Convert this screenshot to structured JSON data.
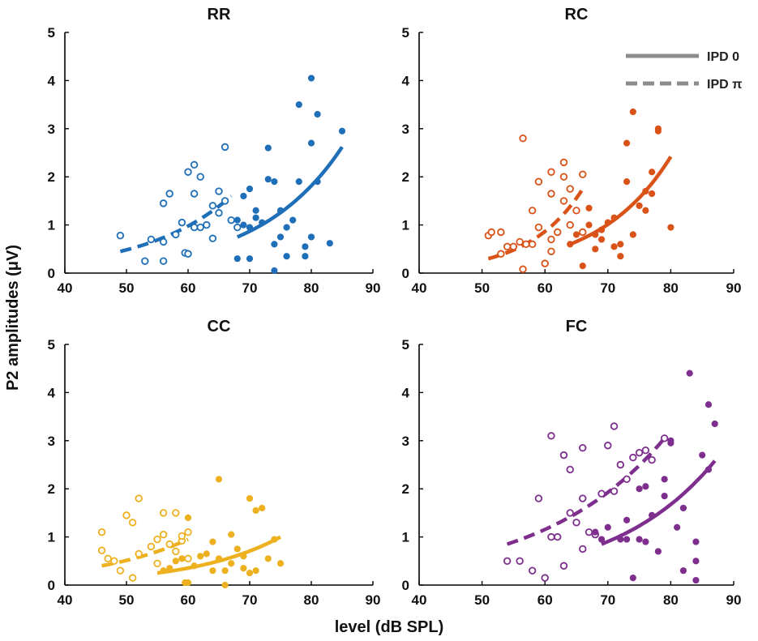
{
  "chart_data": {
    "type": "scatter",
    "ylabel": "P2 amplitudes  (μV)",
    "xlabel": "level (dB SPL)",
    "xlim": [
      40,
      90
    ],
    "ylim": [
      0,
      5
    ],
    "xticks": [
      "40",
      "50",
      "60",
      "70",
      "80",
      "90"
    ],
    "yticks": [
      "0",
      "1",
      "2",
      "3",
      "4",
      "5"
    ],
    "legend": {
      "placement": "top-right of RC panel",
      "entries": [
        {
          "label": "IPD 0",
          "style": "solid",
          "color": "#8c8c8c"
        },
        {
          "label": "IPD π",
          "style": "dashed",
          "color": "#8c8c8c"
        }
      ]
    },
    "panels": [
      {
        "title": "RR",
        "color": "#1f6fb8",
        "ipd_pi_points": [
          [
            49,
            0.78
          ],
          [
            53,
            0.25
          ],
          [
            54,
            0.7
          ],
          [
            56,
            0.25
          ],
          [
            56,
            0.65
          ],
          [
            56,
            1.45
          ],
          [
            57,
            1.65
          ],
          [
            58,
            0.8
          ],
          [
            59,
            1.05
          ],
          [
            59.5,
            0.42
          ],
          [
            60,
            0.4
          ],
          [
            60,
            2.1
          ],
          [
            61,
            2.25
          ],
          [
            61,
            1.65
          ],
          [
            61,
            0.95
          ],
          [
            62,
            0.95
          ],
          [
            62,
            2.0
          ],
          [
            63,
            1.0
          ],
          [
            64,
            1.4
          ],
          [
            64,
            0.72
          ],
          [
            65,
            1.7
          ],
          [
            65,
            1.25
          ],
          [
            66,
            1.5
          ],
          [
            66,
            2.62
          ],
          [
            67,
            1.1
          ],
          [
            68,
            0.95
          ]
        ],
        "ipd_0_points": [
          [
            68,
            1.1
          ],
          [
            68,
            0.3
          ],
          [
            69,
            1.6
          ],
          [
            69,
            1.0
          ],
          [
            70,
            1.75
          ],
          [
            70,
            0.3
          ],
          [
            70,
            0.95
          ],
          [
            71,
            1.3
          ],
          [
            71,
            1.15
          ],
          [
            72,
            1.05
          ],
          [
            73,
            2.6
          ],
          [
            73,
            1.95
          ],
          [
            74,
            0.6
          ],
          [
            74,
            1.9
          ],
          [
            74,
            0.05
          ],
          [
            75,
            0.75
          ],
          [
            75,
            1.3
          ],
          [
            76,
            0.35
          ],
          [
            76,
            0.95
          ],
          [
            77,
            1.1
          ],
          [
            78,
            1.9
          ],
          [
            78,
            3.5
          ],
          [
            79,
            0.55
          ],
          [
            79,
            0.35
          ],
          [
            80,
            4.05
          ],
          [
            80,
            0.75
          ],
          [
            80,
            2.7
          ],
          [
            81,
            3.3
          ],
          [
            81,
            1.9
          ],
          [
            83,
            0.62
          ],
          [
            85,
            2.95
          ]
        ],
        "ipd_pi_fit": {
          "x": [
            49,
            67
          ],
          "y": [
            0.45,
            1.6
          ]
        },
        "ipd_0_fit": {
          "x": [
            68,
            85
          ],
          "y": [
            0.75,
            2.62
          ]
        }
      },
      {
        "title": "RC",
        "color": "#d95319",
        "ipd_pi_points": [
          [
            51,
            0.78
          ],
          [
            51.5,
            0.85
          ],
          [
            53,
            0.4
          ],
          [
            53,
            0.85
          ],
          [
            54,
            0.55
          ],
          [
            55,
            0.55
          ],
          [
            56,
            0.65
          ],
          [
            56.5,
            2.8
          ],
          [
            56.5,
            0.08
          ],
          [
            57,
            0.6
          ],
          [
            58,
            0.6
          ],
          [
            58,
            1.3
          ],
          [
            59,
            0.95
          ],
          [
            59,
            1.9
          ],
          [
            60,
            0.2
          ],
          [
            61,
            0.45
          ],
          [
            61,
            1.65
          ],
          [
            61,
            2.1
          ],
          [
            61,
            0.7
          ],
          [
            62,
            0.85
          ],
          [
            63,
            1.5
          ],
          [
            63,
            2.0
          ],
          [
            63,
            2.3
          ],
          [
            64,
            1.75
          ],
          [
            64,
            1.0
          ],
          [
            65,
            1.3
          ],
          [
            66,
            2.05
          ],
          [
            66,
            0.85
          ]
        ],
        "ipd_0_points": [
          [
            64,
            0.6
          ],
          [
            65,
            0.8
          ],
          [
            66,
            0.15
          ],
          [
            67,
            1.0
          ],
          [
            67,
            1.35
          ],
          [
            68,
            0.8
          ],
          [
            68,
            0.5
          ],
          [
            69,
            0.9
          ],
          [
            69,
            0.7
          ],
          [
            70,
            1.05
          ],
          [
            71,
            0.55
          ],
          [
            71,
            1.15
          ],
          [
            72,
            0.35
          ],
          [
            72,
            0.6
          ],
          [
            73,
            2.7
          ],
          [
            73,
            1.9
          ],
          [
            74,
            0.8
          ],
          [
            74,
            3.35
          ],
          [
            75,
            1.4
          ],
          [
            76,
            1.3
          ],
          [
            76,
            1.7
          ],
          [
            77,
            2.1
          ],
          [
            77,
            1.65
          ],
          [
            78,
            3.0
          ],
          [
            78,
            2.95
          ],
          [
            80,
            0.95
          ]
        ],
        "ipd_pi_fit": {
          "x": [
            51,
            66
          ],
          "y": [
            0.3,
            1.75
          ]
        },
        "ipd_0_fit": {
          "x": [
            64,
            80
          ],
          "y": [
            0.6,
            2.42
          ]
        }
      },
      {
        "title": "CC",
        "color": "#edb120",
        "ipd_pi_points": [
          [
            46,
            1.1
          ],
          [
            46,
            0.72
          ],
          [
            47,
            0.55
          ],
          [
            48,
            0.5
          ],
          [
            49,
            0.3
          ],
          [
            50,
            1.45
          ],
          [
            51,
            1.3
          ],
          [
            51,
            0.15
          ],
          [
            52,
            0.65
          ],
          [
            52,
            1.8
          ],
          [
            54,
            0.8
          ],
          [
            55,
            0.95
          ],
          [
            55,
            0.45
          ],
          [
            56,
            1.05
          ],
          [
            56,
            1.5
          ],
          [
            57,
            0.85
          ],
          [
            58,
            1.5
          ],
          [
            58,
            0.7
          ],
          [
            59,
            0.92
          ],
          [
            59,
            1.02
          ],
          [
            60,
            1.1
          ],
          [
            60,
            0.55
          ]
        ],
        "ipd_0_points": [
          [
            56,
            0.3
          ],
          [
            57,
            0.35
          ],
          [
            58,
            0.5
          ],
          [
            59,
            0.55
          ],
          [
            59.5,
            0.05
          ],
          [
            60,
            1.4
          ],
          [
            60,
            0.05
          ],
          [
            61,
            0.4
          ],
          [
            62,
            0.6
          ],
          [
            63,
            0.65
          ],
          [
            64,
            0.9
          ],
          [
            64,
            0.3
          ],
          [
            65,
            2.2
          ],
          [
            65,
            0.55
          ],
          [
            66,
            0.0
          ],
          [
            66,
            0.3
          ],
          [
            67,
            0.45
          ],
          [
            67,
            1.05
          ],
          [
            68,
            0.75
          ],
          [
            69,
            0.6
          ],
          [
            69,
            0.35
          ],
          [
            70,
            0.25
          ],
          [
            70,
            1.8
          ],
          [
            71,
            0.3
          ],
          [
            71,
            1.55
          ],
          [
            72,
            1.6
          ],
          [
            73,
            0.55
          ],
          [
            74,
            0.95
          ],
          [
            75,
            0.45
          ]
        ],
        "ipd_pi_fit": {
          "x": [
            46,
            60
          ],
          "y": [
            0.4,
            0.95
          ]
        },
        "ipd_0_fit": {
          "x": [
            55,
            75
          ],
          "y": [
            0.25,
            1.0
          ]
        }
      },
      {
        "title": "FC",
        "color": "#7e2f8e",
        "ipd_pi_points": [
          [
            54,
            0.5
          ],
          [
            56,
            0.5
          ],
          [
            58,
            0.3
          ],
          [
            59,
            1.8
          ],
          [
            60,
            0.15
          ],
          [
            61,
            3.1
          ],
          [
            61,
            1.0
          ],
          [
            62,
            1.0
          ],
          [
            63,
            2.7
          ],
          [
            63,
            0.4
          ],
          [
            64,
            2.4
          ],
          [
            64,
            1.5
          ],
          [
            65,
            1.3
          ],
          [
            66,
            1.8
          ],
          [
            66,
            0.75
          ],
          [
            66,
            2.85
          ],
          [
            67,
            1.1
          ],
          [
            68,
            1.05
          ],
          [
            69,
            1.9
          ],
          [
            70,
            2.9
          ],
          [
            71,
            3.3
          ],
          [
            71,
            1.95
          ],
          [
            72,
            2.5
          ],
          [
            73,
            2.2
          ],
          [
            74,
            2.65
          ],
          [
            75,
            2.75
          ],
          [
            76,
            2.8
          ],
          [
            77,
            2.6
          ],
          [
            79,
            3.05
          ]
        ],
        "ipd_0_points": [
          [
            68,
            1.1
          ],
          [
            69,
            0.95
          ],
          [
            70,
            1.2
          ],
          [
            72,
            0.95
          ],
          [
            73,
            1.35
          ],
          [
            73,
            0.95
          ],
          [
            74,
            0.15
          ],
          [
            75,
            2.0
          ],
          [
            75,
            0.95
          ],
          [
            76,
            2.05
          ],
          [
            76,
            0.9
          ],
          [
            77,
            1.45
          ],
          [
            78,
            0.7
          ],
          [
            79,
            2.2
          ],
          [
            79,
            1.85
          ],
          [
            80,
            3.0
          ],
          [
            80,
            2.95
          ],
          [
            81,
            1.2
          ],
          [
            82,
            0.3
          ],
          [
            82,
            1.6
          ],
          [
            83,
            4.4
          ],
          [
            84,
            0.9
          ],
          [
            84,
            0.5
          ],
          [
            84,
            0.1
          ],
          [
            85,
            2.7
          ],
          [
            86,
            3.75
          ],
          [
            86,
            2.4
          ],
          [
            87,
            3.35
          ]
        ],
        "ipd_pi_fit": {
          "x": [
            54,
            79
          ],
          "y": [
            0.85,
            3.05
          ]
        },
        "ipd_0_fit": {
          "x": [
            69,
            87
          ],
          "y": [
            0.85,
            2.58
          ]
        }
      }
    ]
  }
}
